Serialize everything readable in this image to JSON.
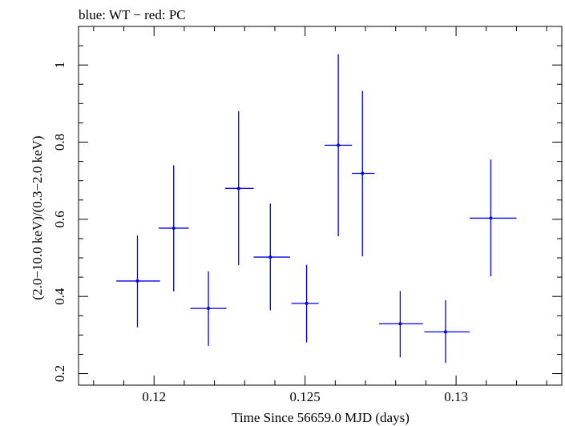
{
  "chart_data": {
    "type": "scatter",
    "title": "blue: WT − red: PC",
    "xlabel": "Time Since 56659.0 MJD (days)",
    "ylabel": "(2.0−10.0 keV)/(0.3−2.0 keV)",
    "xlim": [
      0.1175,
      0.1335
    ],
    "ylim": [
      0.17,
      1.1
    ],
    "x_ticks": [
      {
        "value": 0.12,
        "label": "0.12"
      },
      {
        "value": 0.125,
        "label": "0.125"
      },
      {
        "value": 0.13,
        "label": "0.13"
      }
    ],
    "y_ticks": [
      {
        "value": 0.2,
        "label": "0.2"
      },
      {
        "value": 0.4,
        "label": "0.4"
      },
      {
        "value": 0.6,
        "label": "0.6"
      },
      {
        "value": 0.8,
        "label": "0.8"
      },
      {
        "value": 1.0,
        "label": "1"
      }
    ],
    "x_minor_step": 0.001,
    "y_minor_step": 0.05,
    "grid": false,
    "legend": "none",
    "colors": {
      "WT": "#0000ee",
      "frame": "#000000"
    },
    "series": [
      {
        "points": [
          {
            "x": 0.11945,
            "xlo": 0.11875,
            "xhi": 0.1202,
            "y": 0.44,
            "ylo": 0.32,
            "yhi": 0.558
          },
          {
            "x": 0.12065,
            "xlo": 0.12015,
            "xhi": 0.12115,
            "y": 0.577,
            "ylo": 0.413,
            "yhi": 0.74
          },
          {
            "x": 0.1218,
            "xlo": 0.1212,
            "xhi": 0.1224,
            "y": 0.369,
            "ylo": 0.272,
            "yhi": 0.465
          },
          {
            "x": 0.1228,
            "xlo": 0.12235,
            "xhi": 0.1233,
            "y": 0.68,
            "ylo": 0.481,
            "yhi": 0.88
          },
          {
            "x": 0.12385,
            "xlo": 0.1233,
            "xhi": 0.1245,
            "y": 0.502,
            "ylo": 0.364,
            "yhi": 0.641
          },
          {
            "x": 0.12505,
            "xlo": 0.12455,
            "xhi": 0.12545,
            "y": 0.382,
            "ylo": 0.281,
            "yhi": 0.482
          },
          {
            "x": 0.1261,
            "xlo": 0.12565,
            "xhi": 0.12655,
            "y": 0.792,
            "ylo": 0.556,
            "yhi": 1.028
          },
          {
            "x": 0.1269,
            "xlo": 0.12655,
            "xhi": 0.1273,
            "y": 0.719,
            "ylo": 0.504,
            "yhi": 0.933
          },
          {
            "x": 0.12815,
            "xlo": 0.12745,
            "xhi": 0.1289,
            "y": 0.329,
            "ylo": 0.242,
            "yhi": 0.414
          },
          {
            "x": 0.12965,
            "xlo": 0.12895,
            "xhi": 0.13045,
            "y": 0.308,
            "ylo": 0.228,
            "yhi": 0.39
          },
          {
            "x": 0.13115,
            "xlo": 0.13045,
            "xhi": 0.132,
            "y": 0.603,
            "ylo": 0.452,
            "yhi": 0.755
          }
        ]
      }
    ]
  }
}
